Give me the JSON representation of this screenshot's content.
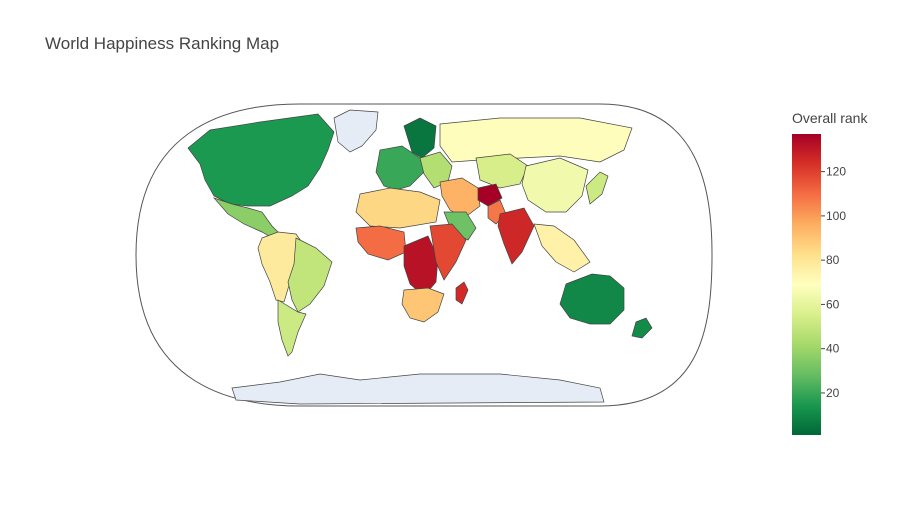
{
  "chart_data": {
    "type": "choropleth",
    "title": "World Happiness Ranking Map",
    "projection": "natural earth",
    "colorbar": {
      "title": "Overall rank",
      "colorscale": "RdYlGn (reversed)",
      "colors_low_to_high": [
        "#006837",
        "#1a9850",
        "#66bd63",
        "#a6d96a",
        "#d9ef8b",
        "#ffffbf",
        "#fee08b",
        "#fdae61",
        "#f46d43",
        "#d73027",
        "#a50026"
      ],
      "range": [
        1,
        137
      ],
      "ticks": [
        20,
        40,
        60,
        80,
        100,
        120
      ]
    },
    "missing_color": "#e5ecf6",
    "land_outline_color": "#444444",
    "regions": [
      {
        "name": "North America",
        "rank": 15
      },
      {
        "name": "Greenland",
        "rank": null
      },
      {
        "name": "Mexico & Central America",
        "rank": 36
      },
      {
        "name": "Northern South America",
        "rank": 78
      },
      {
        "name": "Brazil",
        "rank": 49
      },
      {
        "name": "Southern Cone",
        "rank": 52
      },
      {
        "name": "Nordic Europe",
        "rank": 5
      },
      {
        "name": "Western Europe",
        "rank": 20
      },
      {
        "name": "Eastern Europe",
        "rank": 45
      },
      {
        "name": "Russia",
        "rank": 70
      },
      {
        "name": "Central Asia",
        "rank": 55
      },
      {
        "name": "China",
        "rank": 64
      },
      {
        "name": "Middle East",
        "rank": 95
      },
      {
        "name": "Saudi Arabia",
        "rank": 30
      },
      {
        "name": "Afghanistan",
        "rank": 137
      },
      {
        "name": "Pakistan",
        "rank": 108
      },
      {
        "name": "India",
        "rank": 126
      },
      {
        "name": "Southeast Asia",
        "rank": 75
      },
      {
        "name": "Japan & Korea",
        "rank": 52
      },
      {
        "name": "North Africa",
        "rank": 85
      },
      {
        "name": "West Africa",
        "rank": 110
      },
      {
        "name": "Central Africa",
        "rank": 132
      },
      {
        "name": "East Africa",
        "rank": 118
      },
      {
        "name": "Southern Africa",
        "rank": 90
      },
      {
        "name": "Madagascar",
        "rank": 125
      },
      {
        "name": "Australia",
        "rank": 10
      },
      {
        "name": "New Zealand",
        "rank": 11
      },
      {
        "name": "Antarctica",
        "rank": null
      }
    ]
  }
}
